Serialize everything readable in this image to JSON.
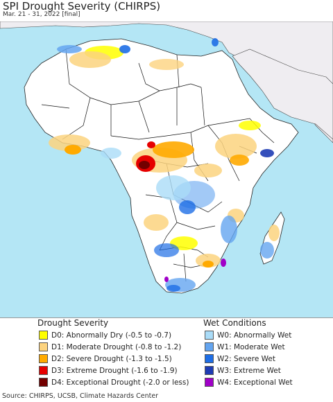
{
  "title": "SPI Drought Severity (CHIRPS)",
  "subtitle": "Mar. 21 - 31, 2022 [final]",
  "legend": {
    "drought_title": "Drought Severity",
    "drought_items": [
      {
        "label": "D0: Abnormally Dry (-0.5 to -0.7)",
        "color": "#ffff00"
      },
      {
        "label": "D1: Moderate Drought (-0.8 to -1.2)",
        "color": "#fcd37f"
      },
      {
        "label": "D2: Severe Drought (-1.3 to -1.5)",
        "color": "#ffaa00"
      },
      {
        "label": "D3: Extreme Drought (-1.6 to -1.9)",
        "color": "#e60000"
      },
      {
        "label": "D4: Exceptional Drought (-2.0 or less)",
        "color": "#730000"
      }
    ],
    "wet_title": "Wet Conditions",
    "wet_items": [
      {
        "label": "W0: Abnormally Wet",
        "color": "#aadcf8"
      },
      {
        "label": "W1: Moderate Wet",
        "color": "#64a5f0"
      },
      {
        "label": "W2: Severe Wet",
        "color": "#1e6ee6"
      },
      {
        "label": "W3: Extreme Wet",
        "color": "#1e3cb4"
      },
      {
        "label": "W4: Exceptional Wet",
        "color": "#a000c8"
      }
    ]
  },
  "source": "Source: CHIRPS, UCSB, Climate Hazards Center",
  "colors": {
    "ocean": "#b4e6f5",
    "land": "#ffffff",
    "outside_land": "#efedf1",
    "border": "#000000"
  }
}
